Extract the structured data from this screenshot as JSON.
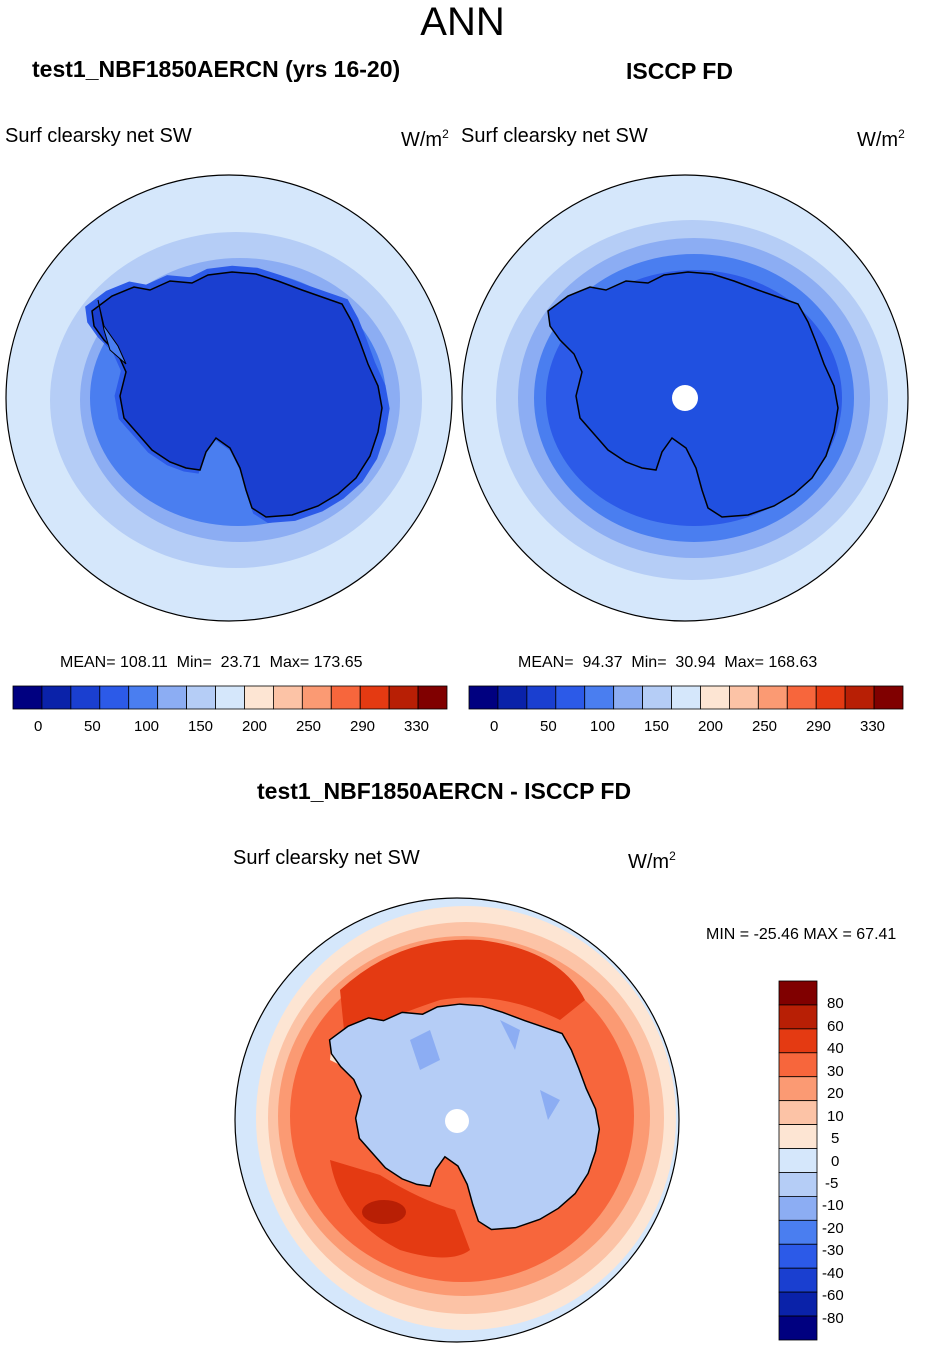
{
  "page": {
    "season": "ANN",
    "variable": "Surf clearsky net SW",
    "units": {
      "base": "W/m",
      "exponent": "2"
    }
  },
  "panels": {
    "model": {
      "title": "test1_NBF1850AERCN (yrs 16-20)",
      "stats": {
        "mean": "108.11",
        "min": "23.71",
        "max": "173.65"
      }
    },
    "obs": {
      "title": "ISCCP FD",
      "stats": {
        "mean": "94.37",
        "min": "30.94",
        "max": "168.63"
      }
    },
    "diff": {
      "title": "test1_NBF1850AERCN - ISCCP FD",
      "min_max_text": "MIN = -25.46 MAX =  67.41"
    }
  },
  "colorbars": {
    "absolute": {
      "colors": [
        "#000080",
        "#0a22a9",
        "#1a3fd0",
        "#2c5ae8",
        "#4a7ef0",
        "#8cadf3",
        "#b5cdf6",
        "#d5e7fb",
        "#fde5d3",
        "#fcc3a6",
        "#fb9a73",
        "#f7663c",
        "#e43a12",
        "#b81f05",
        "#800000"
      ],
      "tick_labels": [
        "0",
        "50",
        "100",
        "150",
        "200",
        "250",
        "290",
        "330"
      ]
    },
    "difference": {
      "colors": [
        "#800000",
        "#b81f05",
        "#e43a12",
        "#f7663c",
        "#fb9a73",
        "#fcc3a6",
        "#fde5d3",
        "#d5e7fb",
        "#b5cdf6",
        "#8cadf3",
        "#4a7ef0",
        "#2c5ae8",
        "#1a3fd0",
        "#0a22a9",
        "#000080"
      ],
      "tick_labels": [
        "80",
        "60",
        "40",
        "30",
        "20",
        "10",
        "5",
        "0",
        "-5",
        "-10",
        "-20",
        "-30",
        "-40",
        "-60",
        "-80"
      ]
    }
  },
  "map_colors": {
    "ocean_outer": "#d5e7fb",
    "ocean_mid": "#b5cdf6",
    "ocean_inner": "#8cadf3",
    "coast_ring": "#4a7ef0",
    "ice_deep": "#1a3fd0",
    "ice_obs": "#2050e0",
    "pole_hole": "#ffffff",
    "diff_outer": "#fde5d3",
    "diff_10": "#fcc3a6",
    "diff_20": "#fb9a73",
    "diff_30": "#f7663c",
    "diff_40": "#e43a12",
    "diff_60": "#b81f05",
    "diff_land": "#b5cdf6",
    "diff_land_dark": "#8cadf3",
    "coast": "#000000"
  }
}
